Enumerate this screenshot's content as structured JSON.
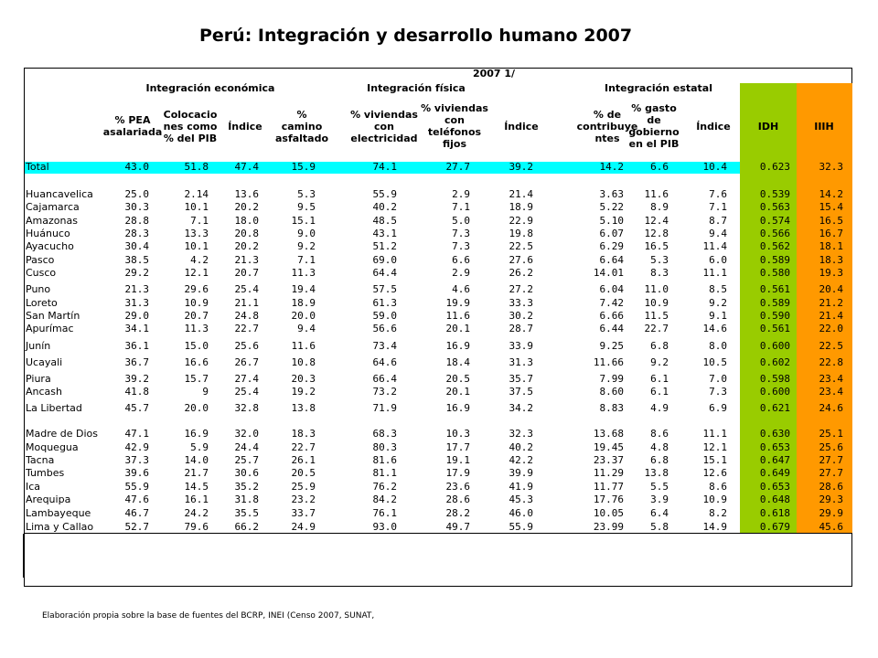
{
  "title": "Perú: Integración y desarrollo humano 2007",
  "year_label": "2007 1/",
  "groups": {
    "economica": "Integración económica",
    "fisica": "Integración física",
    "estatal": "Integración estatal"
  },
  "columns": [
    {
      "key": "pea",
      "lines": [
        "% PEA",
        "asalariada"
      ]
    },
    {
      "key": "colocaciones",
      "lines": [
        "Colocacio",
        "nes como",
        "% del PIB"
      ]
    },
    {
      "key": "indice_eco",
      "lines": [
        "Índice"
      ]
    },
    {
      "key": "camino",
      "lines": [
        "%",
        "camino",
        "asfaltado"
      ]
    },
    {
      "key": "electricidad",
      "lines": [
        "% viviendas",
        "con",
        "electricidad"
      ]
    },
    {
      "key": "telefonos",
      "lines": [
        "% viviendas",
        "con",
        "teléfonos",
        "fijos"
      ]
    },
    {
      "key": "indice_fis",
      "lines": [
        "Índice"
      ]
    },
    {
      "key": "contribuyentes",
      "lines": [
        "% de",
        "contribuye",
        "ntes"
      ]
    },
    {
      "key": "gasto",
      "lines": [
        "% gasto",
        "de",
        "gobierno",
        "en el PIB"
      ]
    },
    {
      "key": "indice_est",
      "lines": [
        "Índice"
      ]
    },
    {
      "key": "idh",
      "lines": [
        "IDH"
      ]
    },
    {
      "key": "iiih",
      "lines": [
        "IIIH"
      ]
    }
  ],
  "rows": [
    {
      "name": "Total",
      "values": [
        "43.0",
        "51.8",
        "47.4",
        "15.9",
        "74.1",
        "27.7",
        "39.2",
        "14.2",
        "6.6",
        "10.4",
        "0.623",
        "32.3"
      ]
    },
    {
      "name": "Huancavelica",
      "values": [
        "25.0",
        "2.14",
        "13.6",
        "5.3",
        "55.9",
        "2.9",
        "21.4",
        "3.63",
        "11.6",
        "7.6",
        "0.539",
        "14.2"
      ]
    },
    {
      "name": "Cajamarca",
      "values": [
        "30.3",
        "10.1",
        "20.2",
        "9.5",
        "40.2",
        "7.1",
        "18.9",
        "5.22",
        "8.9",
        "7.1",
        "0.563",
        "15.4"
      ]
    },
    {
      "name": "Amazonas",
      "values": [
        "28.8",
        "7.1",
        "18.0",
        "15.1",
        "48.5",
        "5.0",
        "22.9",
        "5.10",
        "12.4",
        "8.7",
        "0.574",
        "16.5"
      ]
    },
    {
      "name": "Huánuco",
      "values": [
        "28.3",
        "13.3",
        "20.8",
        "9.0",
        "43.1",
        "7.3",
        "19.8",
        "6.07",
        "12.8",
        "9.4",
        "0.566",
        "16.7"
      ]
    },
    {
      "name": "Ayacucho",
      "values": [
        "30.4",
        "10.1",
        "20.2",
        "9.2",
        "51.2",
        "7.3",
        "22.5",
        "6.29",
        "16.5",
        "11.4",
        "0.562",
        "18.1"
      ]
    },
    {
      "name": "Pasco",
      "values": [
        "38.5",
        "4.2",
        "21.3",
        "7.1",
        "69.0",
        "6.6",
        "27.6",
        "6.64",
        "5.3",
        "6.0",
        "0.589",
        "18.3"
      ]
    },
    {
      "name": "Cusco",
      "values": [
        "29.2",
        "12.1",
        "20.7",
        "11.3",
        "64.4",
        "2.9",
        "26.2",
        "14.01",
        "8.3",
        "11.1",
        "0.580",
        "19.3"
      ]
    },
    {
      "name": "Puno",
      "values": [
        "21.3",
        "29.6",
        "25.4",
        "19.4",
        "57.5",
        "4.6",
        "27.2",
        "6.04",
        "11.0",
        "8.5",
        "0.561",
        "20.4"
      ]
    },
    {
      "name": "Loreto",
      "values": [
        "31.3",
        "10.9",
        "21.1",
        "18.9",
        "61.3",
        "19.9",
        "33.3",
        "7.42",
        "10.9",
        "9.2",
        "0.589",
        "21.2"
      ]
    },
    {
      "name": "San Martín",
      "values": [
        "29.0",
        "20.7",
        "24.8",
        "20.0",
        "59.0",
        "11.6",
        "30.2",
        "6.66",
        "11.5",
        "9.1",
        "0.590",
        "21.4"
      ]
    },
    {
      "name": "Apurímac",
      "values": [
        "34.1",
        "11.3",
        "22.7",
        "9.4",
        "56.6",
        "20.1",
        "28.7",
        "6.44",
        "22.7",
        "14.6",
        "0.561",
        "22.0"
      ]
    },
    {
      "name": "Junín",
      "values": [
        "36.1",
        "15.0",
        "25.6",
        "11.6",
        "73.4",
        "16.9",
        "33.9",
        "9.25",
        "6.8",
        "8.0",
        "0.600",
        "22.5"
      ]
    },
    {
      "name": "Ucayali",
      "values": [
        "36.7",
        "16.6",
        "26.7",
        "10.8",
        "64.6",
        "18.4",
        "31.3",
        "11.66",
        "9.2",
        "10.5",
        "0.602",
        "22.8"
      ]
    },
    {
      "name": "Piura",
      "values": [
        "39.2",
        "15.7",
        "27.4",
        "20.3",
        "66.4",
        "20.5",
        "35.7",
        "7.99",
        "6.1",
        "7.0",
        "0.598",
        "23.4"
      ]
    },
    {
      "name": "Ancash",
      "values": [
        "41.8",
        "9",
        "25.4",
        "19.2",
        "73.2",
        "20.1",
        "37.5",
        "8.60",
        "6.1",
        "7.3",
        "0.600",
        "23.4"
      ]
    },
    {
      "name": "La Libertad",
      "values": [
        "45.7",
        "20.0",
        "32.8",
        "13.8",
        "71.9",
        "16.9",
        "34.2",
        "8.83",
        "4.9",
        "6.9",
        "0.621",
        "24.6"
      ]
    },
    {
      "name": "Madre de Dios",
      "values": [
        "47.1",
        "16.9",
        "32.0",
        "18.3",
        "68.3",
        "10.3",
        "32.3",
        "13.68",
        "8.6",
        "11.1",
        "0.630",
        "25.1"
      ]
    },
    {
      "name": "Moquegua",
      "values": [
        "42.9",
        "5.9",
        "24.4",
        "22.7",
        "80.3",
        "17.7",
        "40.2",
        "19.45",
        "4.8",
        "12.1",
        "0.653",
        "25.6"
      ]
    },
    {
      "name": "Tacna",
      "values": [
        "37.3",
        "14.0",
        "25.7",
        "26.1",
        "81.6",
        "19.1",
        "42.2",
        "23.37",
        "6.8",
        "15.1",
        "0.647",
        "27.7"
      ]
    },
    {
      "name": "Tumbes",
      "values": [
        "39.6",
        "21.7",
        "30.6",
        "20.5",
        "81.1",
        "17.9",
        "39.9",
        "11.29",
        "13.8",
        "12.6",
        "0.649",
        "27.7"
      ]
    },
    {
      "name": "Ica",
      "values": [
        "55.9",
        "14.5",
        "35.2",
        "25.9",
        "76.2",
        "23.6",
        "41.9",
        "11.77",
        "5.5",
        "8.6",
        "0.653",
        "28.6"
      ]
    },
    {
      "name": "Arequipa",
      "values": [
        "47.6",
        "16.1",
        "31.8",
        "23.2",
        "84.2",
        "28.6",
        "45.3",
        "17.76",
        "3.9",
        "10.9",
        "0.648",
        "29.3"
      ]
    },
    {
      "name": "Lambayeque",
      "values": [
        "46.7",
        "24.2",
        "35.5",
        "33.7",
        "76.1",
        "28.2",
        "46.0",
        "10.05",
        "6.4",
        "8.2",
        "0.618",
        "29.9"
      ]
    },
    {
      "name": "Lima y Callao",
      "values": [
        "52.7",
        "79.6",
        "66.2",
        "24.9",
        "93.0",
        "49.7",
        "55.9",
        "23.99",
        "5.8",
        "14.9",
        "0.679",
        "45.6"
      ]
    }
  ],
  "footnote": "Elaboración propia sobre la base de fuentes del BCRP, INEI (Censo 2007, SUNAT,",
  "colors": {
    "idh": "#99cc00",
    "iiih": "#ff9900",
    "total_row": "#00ffff"
  }
}
